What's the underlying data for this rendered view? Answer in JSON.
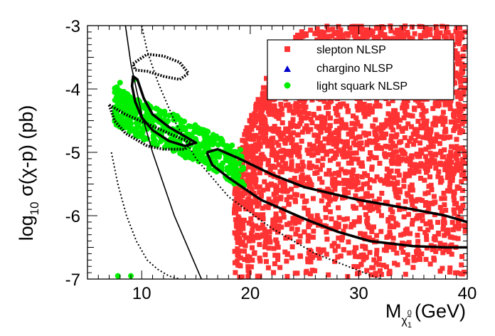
{
  "chart_data": {
    "type": "scatter",
    "title": "",
    "xlabel": {
      "base": "M",
      "sub": "χ̃",
      "sup": "0",
      "subsub": "1",
      "unit": "(GeV)"
    },
    "ylabel": {
      "pre": "log",
      "sub": "10",
      "post": " σ(χ-p) (pb)"
    },
    "xlim": [
      5,
      40
    ],
    "ylim": [
      -7,
      -3
    ],
    "xticks": [
      10,
      20,
      30,
      40
    ],
    "yticks": [
      -7,
      -6,
      -5,
      -4,
      -3
    ],
    "xtick_labels": [
      "10",
      "20",
      "30",
      "40"
    ],
    "ytick_labels": [
      "-7",
      "-6",
      "-5",
      "-4",
      "-3"
    ],
    "grid": false,
    "legend_position": "top-right",
    "series": [
      {
        "name": "slepton NLSP",
        "marker": "square",
        "color": "#ff3333",
        "region": {
          "x_min": 18.5,
          "x_max": 40,
          "y_min_at_xmin": -5.3,
          "y_min_slope": -0.12,
          "y_lo": -7.0,
          "y_hi": -3.0,
          "upper_edge_at_x": [
            [
              18.5,
              -5.2
            ],
            [
              20,
              -4.4
            ],
            [
              22,
              -3.6
            ],
            [
              25,
              -3.0
            ]
          ]
        }
      },
      {
        "name": "chargino NLSP",
        "marker": "triangle",
        "color": "#0000cc",
        "points": []
      },
      {
        "name": "light squark NLSP",
        "marker": "circle",
        "color": "#00ee00",
        "band": {
          "x_min": 7.5,
          "x_max": 19.5,
          "center": [
            [
              7.5,
              -4.25
            ],
            [
              10,
              -4.5
            ],
            [
              13,
              -4.7
            ],
            [
              16,
              -4.95
            ],
            [
              19,
              -5.25
            ]
          ],
          "half_width": 0.3
        },
        "outliers": [
          [
            7.8,
            -6.95
          ],
          [
            9.0,
            -6.95
          ],
          [
            8.0,
            -3.9
          ],
          [
            9.3,
            -3.85
          ]
        ]
      }
    ],
    "curves": [
      {
        "style": "solid-thin",
        "points": [
          [
            8.5,
            -3.0
          ],
          [
            9.0,
            -3.6
          ],
          [
            10,
            -4.4
          ],
          [
            11,
            -5.0
          ],
          [
            12,
            -5.5
          ],
          [
            13,
            -6.0
          ],
          [
            14,
            -6.4
          ],
          [
            15,
            -6.8
          ],
          [
            15.5,
            -7.0
          ]
        ]
      },
      {
        "style": "dotted-thin",
        "points": [
          [
            10,
            -3.0
          ],
          [
            10.5,
            -3.4
          ],
          [
            11.5,
            -3.9
          ],
          [
            13,
            -4.5
          ],
          [
            15,
            -5.1
          ],
          [
            18,
            -5.7
          ],
          [
            22,
            -6.2
          ],
          [
            26,
            -6.6
          ],
          [
            29,
            -6.8
          ],
          [
            32,
            -7.0
          ]
        ]
      },
      {
        "style": "dotted-thin",
        "points": [
          [
            7.2,
            -5.0
          ],
          [
            7.8,
            -5.5
          ],
          [
            8.6,
            -6.0
          ],
          [
            9.5,
            -6.4
          ],
          [
            10.5,
            -6.7
          ],
          [
            11.5,
            -6.85
          ],
          [
            12.5,
            -6.95
          ],
          [
            13.5,
            -7.0
          ]
        ]
      },
      {
        "style": "solid-thick",
        "closed": true,
        "points": [
          [
            9.2,
            -3.8
          ],
          [
            9.6,
            -3.85
          ],
          [
            10.2,
            -4.15
          ],
          [
            11,
            -4.4
          ],
          [
            12.5,
            -4.6
          ],
          [
            14,
            -4.75
          ],
          [
            15,
            -4.85
          ],
          [
            14,
            -4.9
          ],
          [
            12.5,
            -4.82
          ],
          [
            11,
            -4.65
          ],
          [
            10,
            -4.45
          ],
          [
            9.4,
            -4.2
          ],
          [
            9.1,
            -3.95
          ]
        ]
      },
      {
        "style": "solid-thick",
        "closed": false,
        "points": [
          [
            16,
            -5.0
          ],
          [
            17,
            -4.95
          ],
          [
            19,
            -5.1
          ],
          [
            22,
            -5.35
          ],
          [
            25,
            -5.55
          ],
          [
            30,
            -5.75
          ],
          [
            35,
            -5.9
          ],
          [
            38,
            -6.0
          ],
          [
            40,
            -6.1
          ]
        ]
      },
      {
        "style": "solid-thick",
        "closed": false,
        "points": [
          [
            16,
            -5.0
          ],
          [
            16.5,
            -5.2
          ],
          [
            18,
            -5.4
          ],
          [
            21,
            -5.75
          ],
          [
            25,
            -6.05
          ],
          [
            28,
            -6.25
          ],
          [
            31,
            -6.4
          ],
          [
            35,
            -6.48
          ],
          [
            38,
            -6.5
          ],
          [
            40,
            -6.5
          ]
        ]
      },
      {
        "style": "dotted-thick",
        "closed": true,
        "points": [
          [
            7.0,
            -4.25
          ],
          [
            8.5,
            -4.4
          ],
          [
            10.5,
            -4.55
          ],
          [
            12.5,
            -4.7
          ],
          [
            14.5,
            -4.85
          ],
          [
            14.0,
            -4.95
          ],
          [
            12,
            -4.95
          ],
          [
            10.5,
            -4.9
          ],
          [
            9.5,
            -4.8
          ],
          [
            8.5,
            -4.7
          ],
          [
            7.5,
            -4.5
          ]
        ]
      },
      {
        "style": "dotted-thick",
        "closed": true,
        "points": [
          [
            9.2,
            -3.6
          ],
          [
            10.5,
            -3.45
          ],
          [
            12,
            -3.48
          ],
          [
            13.5,
            -3.58
          ],
          [
            14.3,
            -3.75
          ],
          [
            13.5,
            -3.85
          ],
          [
            12,
            -3.8
          ],
          [
            10.5,
            -3.72
          ],
          [
            9.4,
            -3.7
          ]
        ]
      }
    ]
  }
}
